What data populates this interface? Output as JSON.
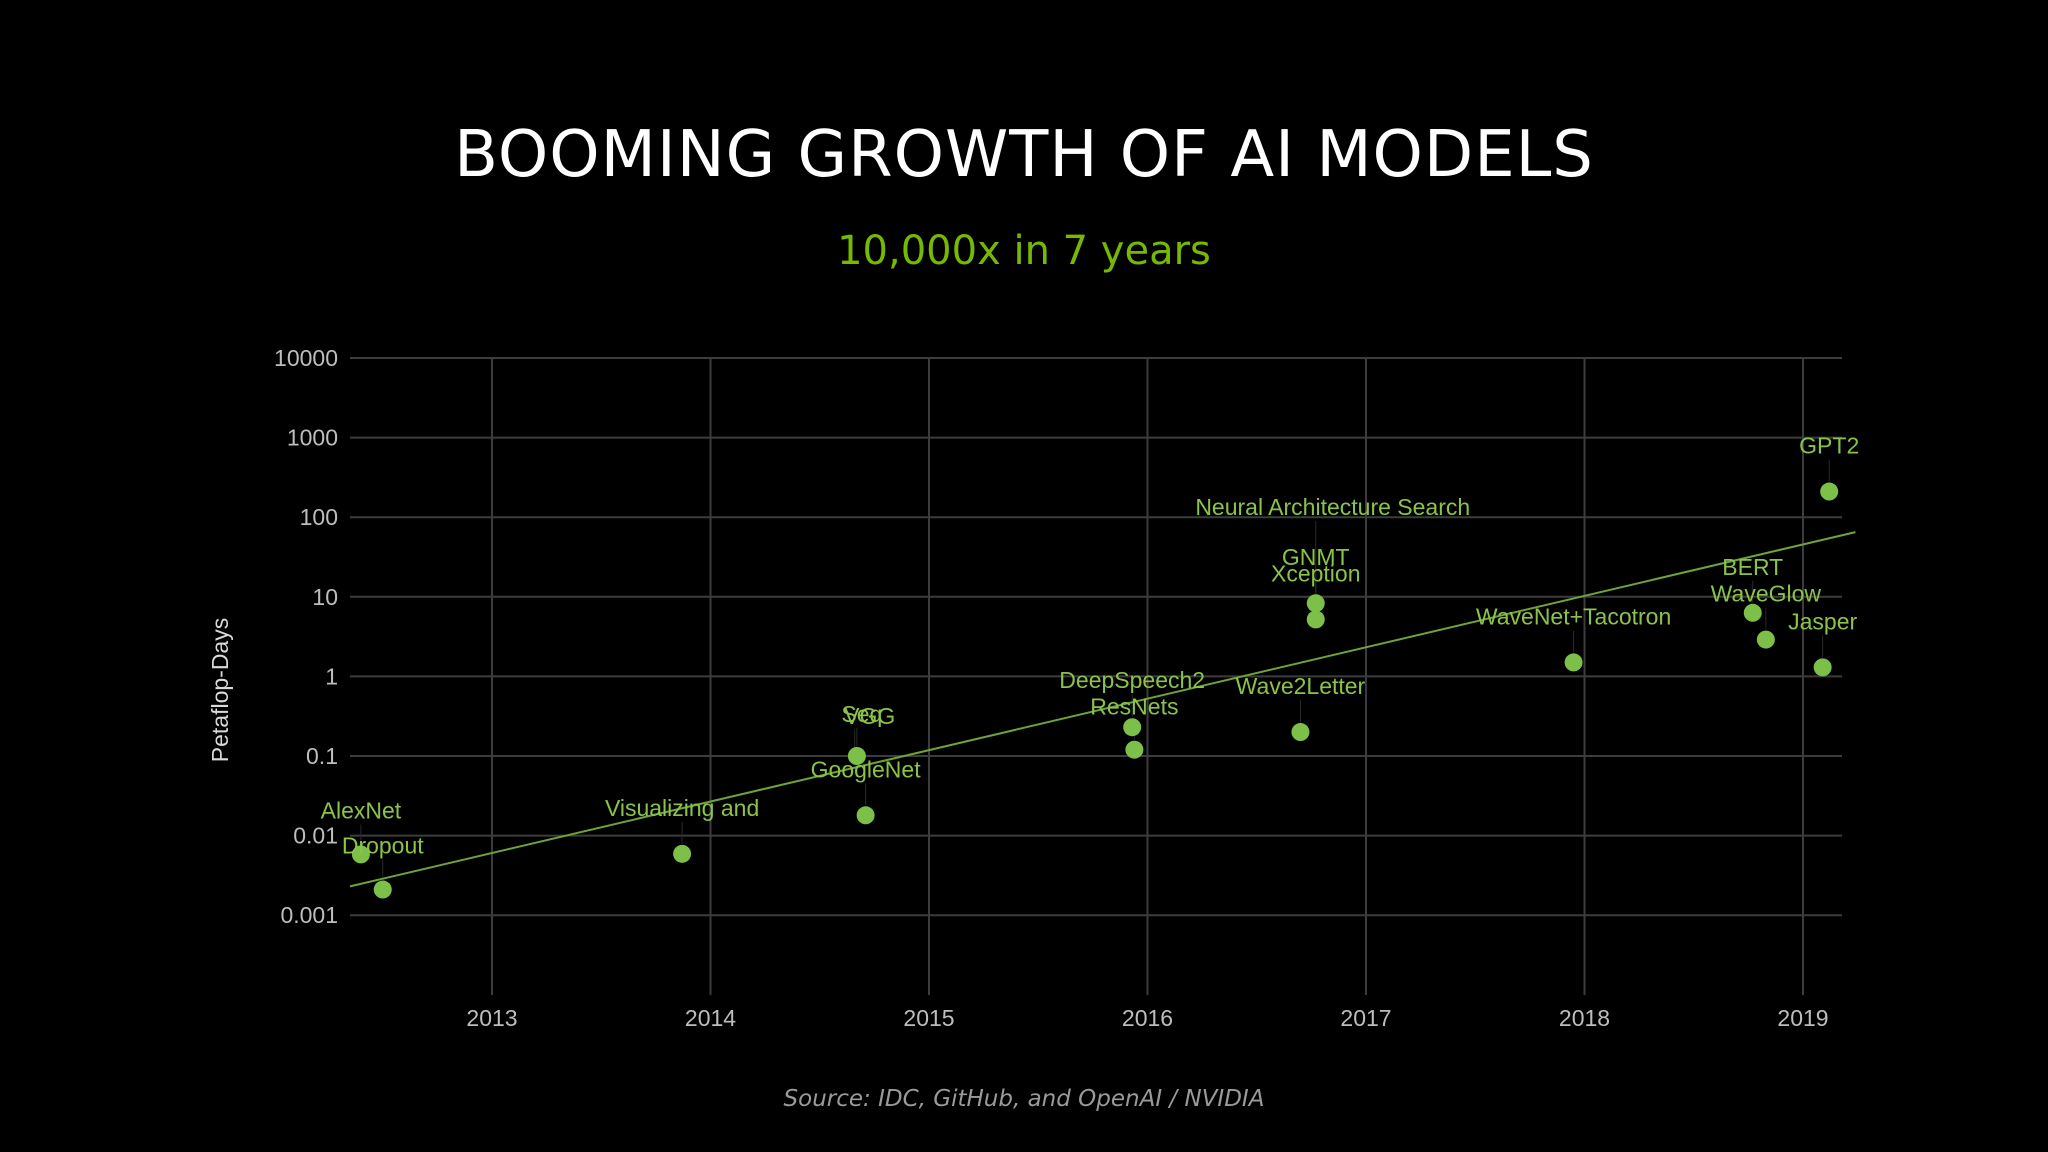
{
  "slide": {
    "title": "BOOMING GROWTH OF AI MODELS",
    "subtitle": "10,000x in 7 years",
    "source": "Source: IDC, GitHub, and OpenAI / NVIDIA"
  },
  "colors": {
    "background": "#000000",
    "title": "#ffffff",
    "accent": "#76b900",
    "points": "#7cc04a",
    "trendline": "#6fa33a",
    "grid": "#3c3c3c"
  },
  "chart_data": {
    "type": "scatter",
    "title": "",
    "xlabel": "",
    "ylabel": "Petaflop-Days",
    "y_scale": "log",
    "ylim": [
      0.0001,
      10000
    ],
    "xlim": [
      2012.35,
      2019.18
    ],
    "y_ticks": [
      10000,
      1000,
      100,
      10,
      1,
      0.1,
      0.01,
      0.001
    ],
    "y_tick_labels": [
      "10000",
      "1000",
      "100",
      "10",
      "1",
      "0.1",
      "0.01",
      "0.001"
    ],
    "x_ticks": [
      2013,
      2014,
      2015,
      2016,
      2017,
      2018,
      2019
    ],
    "x_tick_labels": [
      "2013",
      "2014",
      "2015",
      "2016",
      "2017",
      "2018",
      "2019"
    ],
    "grid": true,
    "points": [
      {
        "label": "AlexNet",
        "x": 2012.4,
        "y": 0.0058
      },
      {
        "label": "Dropout",
        "x": 2012.5,
        "y": 0.0021
      },
      {
        "label": "Visualizing and",
        "x": 2013.87,
        "y": 0.0059
      },
      {
        "label": "Seq",
        "x": 2014.67,
        "y": 0.1
      },
      {
        "label": "VGG",
        "x": 2014.66,
        "y": 0.095
      },
      {
        "label": "GoogleNet",
        "x": 2014.71,
        "y": 0.018
      },
      {
        "label": "DeepSpeech2",
        "x": 2015.93,
        "y": 0.23
      },
      {
        "label": "ResNets",
        "x": 2015.94,
        "y": 0.12
      },
      {
        "label": "Wave2Letter",
        "x": 2016.7,
        "y": 0.2
      },
      {
        "label": "GNMT",
        "x": 2016.77,
        "y": 8.3
      },
      {
        "label": "Xception",
        "x": 2016.77,
        "y": 5.2
      },
      {
        "label": "Neural Architecture Search",
        "x": 2016.77,
        "y": 8.3
      },
      {
        "label": "WaveNet+Tacotron",
        "x": 2017.95,
        "y": 1.5
      },
      {
        "label": "BERT",
        "x": 2018.77,
        "y": 6.3
      },
      {
        "label": "WaveGlow",
        "x": 2018.83,
        "y": 2.9
      },
      {
        "label": "Jasper",
        "x": 2019.09,
        "y": 1.3
      },
      {
        "label": "GPT2",
        "x": 2019.12,
        "y": 210
      }
    ],
    "trendline": {
      "x": [
        2012.35,
        2019.24
      ],
      "y": [
        0.0023,
        65
      ]
    }
  }
}
